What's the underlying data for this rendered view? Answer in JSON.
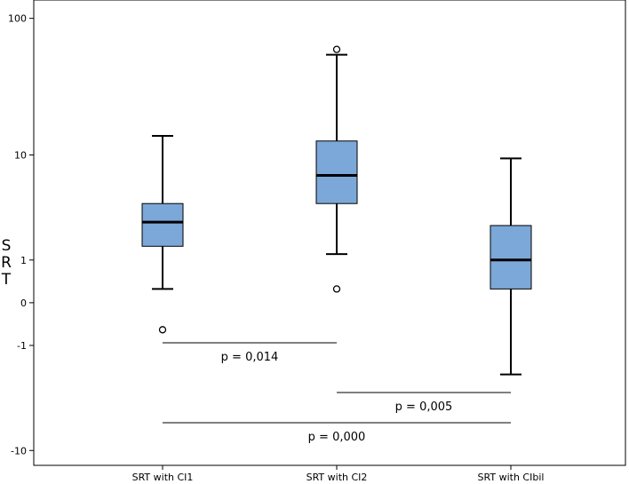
{
  "chart_data": {
    "type": "boxplot",
    "title": "",
    "xlabel": "",
    "ylabel": [
      "S",
      "R",
      "T"
    ],
    "y_ticks": [
      {
        "label": "100",
        "value": 100
      },
      {
        "label": "10",
        "value": 10
      },
      {
        "label": "1",
        "value": 1
      },
      {
        "label": "0",
        "value": 0
      },
      {
        "label": "-1",
        "value": -1
      },
      {
        "label": "-10",
        "value": -10
      }
    ],
    "ylim": [
      -13,
      135
    ],
    "series": [
      {
        "name": "SRT with CI1",
        "min": 0.25,
        "q1": 1.5,
        "median": 2.7,
        "q3": 4.0,
        "max": 14.0,
        "outliers": [
          -0.55
        ]
      },
      {
        "name": "SRT with CI2",
        "min": 1.2,
        "q1": 4.0,
        "median": 6.9,
        "q3": 12.8,
        "max": 55.0,
        "outliers": [
          60.0,
          0.25
        ]
      },
      {
        "name": "SRT with CIbil",
        "min": -2.2,
        "q1": 0.25,
        "median": 1.0,
        "q3": 2.5,
        "max": 9.4,
        "outliers": []
      }
    ],
    "comparisons": [
      {
        "from": 0,
        "to": 1,
        "label": "p = 0,014"
      },
      {
        "from": 1,
        "to": 2,
        "label": "p = 0,005"
      },
      {
        "from": 0,
        "to": 2,
        "label": "p = 0,000"
      }
    ],
    "colors": {
      "box_fill": "#7ba8d8",
      "stroke": "#000000",
      "background": "#ffffff"
    }
  }
}
